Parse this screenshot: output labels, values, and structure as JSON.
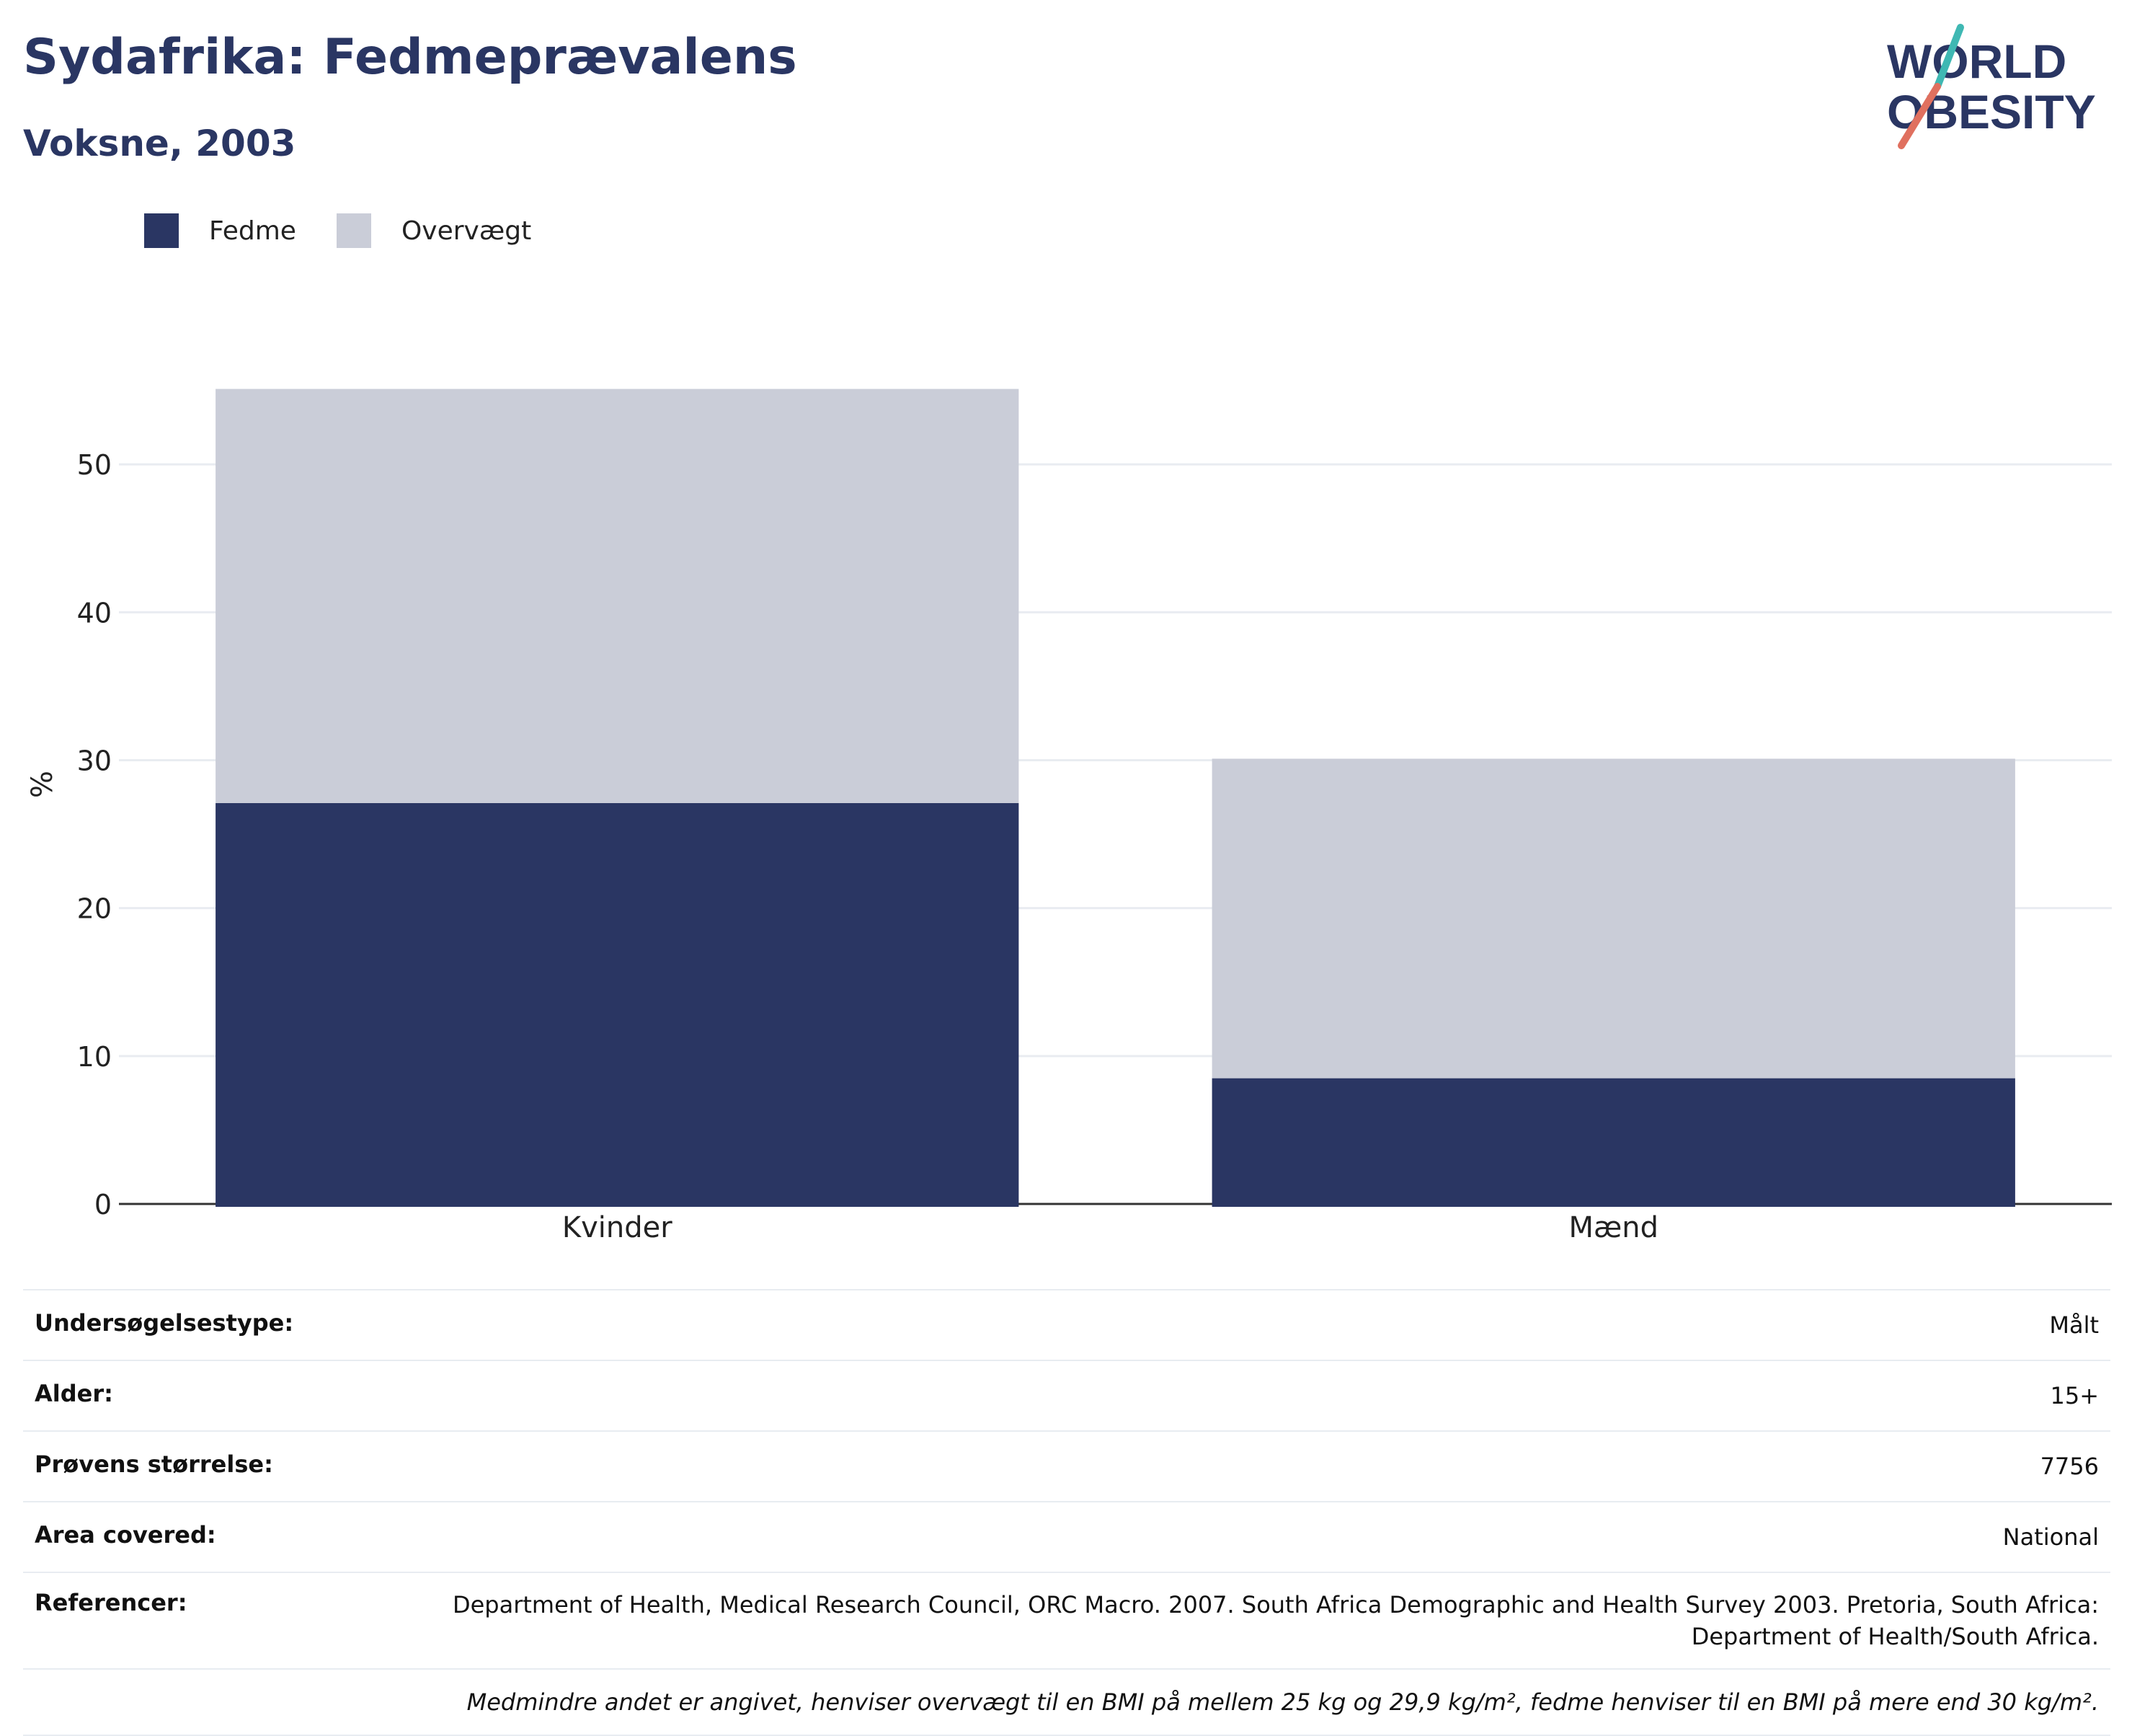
{
  "header": {
    "title": "Sydafrika: Fedmeprævalens",
    "subtitle": "Voksne, 2003"
  },
  "logo": {
    "line1": "WORLD",
    "line2": "OBESITY"
  },
  "colors": {
    "obesity": "#2a3663",
    "overweight": "#cacdd8",
    "text": "#2a3663"
  },
  "chart_data": {
    "type": "bar",
    "stacked": true,
    "categories": [
      "Kvinder",
      "Mænd"
    ],
    "series": [
      {
        "name": "Fedme",
        "values": [
          27.1,
          8.5
        ],
        "color": "#2a3663"
      },
      {
        "name": "Overvægt",
        "values": [
          28.0,
          21.6
        ],
        "color": "#cacdd8"
      }
    ],
    "ylabel": "%",
    "ylim": [
      0,
      58
    ],
    "yticks": [
      0,
      10,
      20,
      30,
      40,
      50
    ],
    "grid": true,
    "legend": "top-left"
  },
  "details": {
    "survey_type": {
      "label": "Undersøgelsestype:",
      "value": "Målt"
    },
    "age": {
      "label": "Alder:",
      "value": "15+"
    },
    "sample_size": {
      "label": "Prøvens størrelse:",
      "value": "7756"
    },
    "area": {
      "label": "Area covered:",
      "value": "National"
    },
    "references": {
      "label": "Referencer:",
      "value": "Department of Health, Medical Research Council, ORC Macro. 2007. South Africa Demographic and Health Survey 2003. Pretoria, South Africa: Department of Health/South Africa."
    },
    "footnote": "Medmindre andet er angivet, henviser overvægt til en BMI på mellem 25 kg og 29,9 kg/m², fedme henviser til en BMI på mere end 30 kg/m²."
  }
}
